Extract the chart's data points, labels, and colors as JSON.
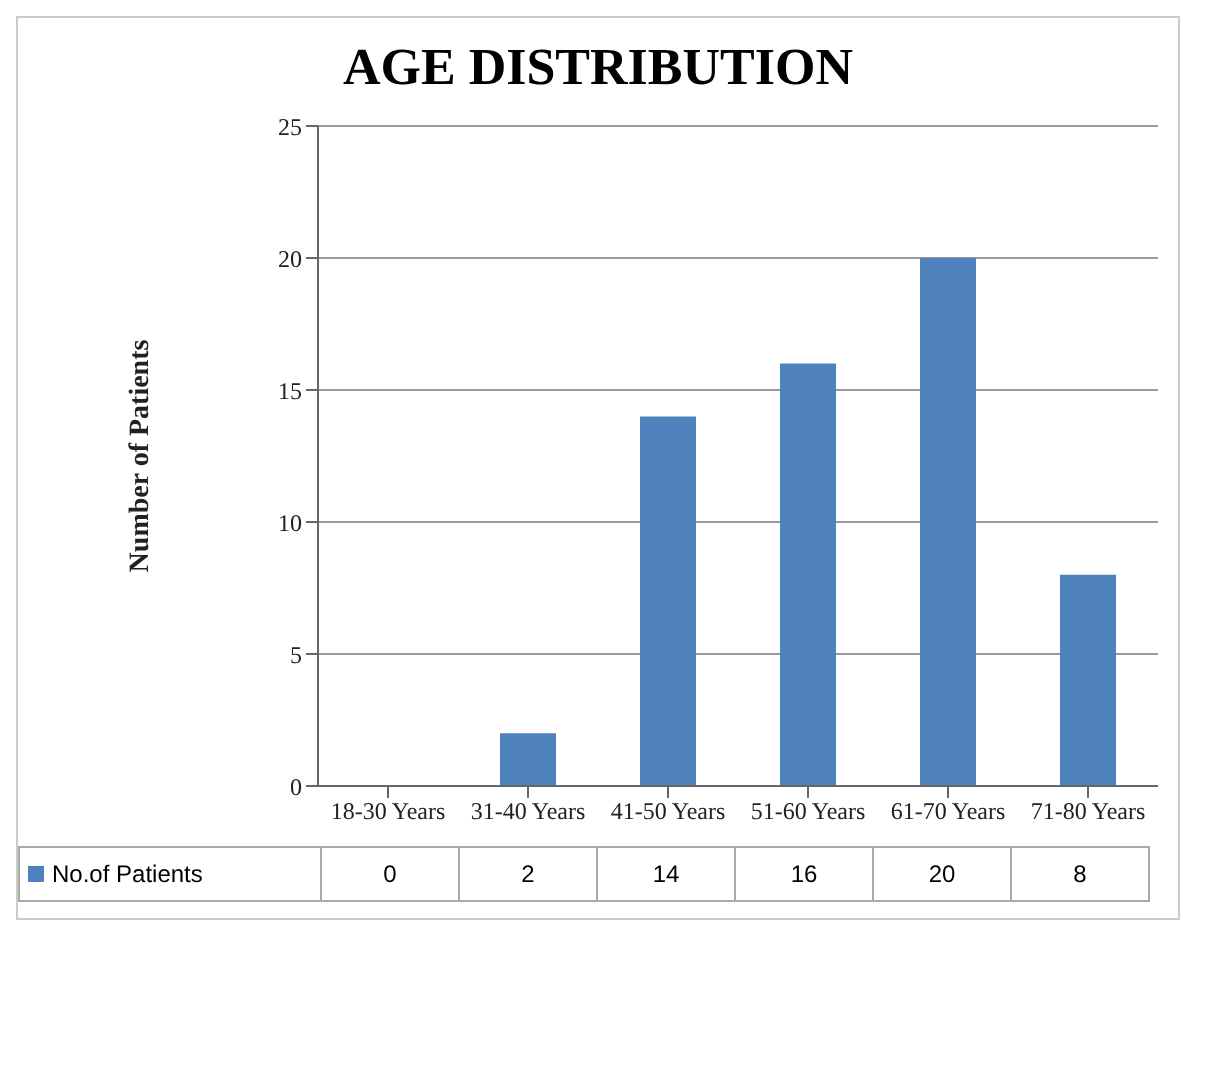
{
  "chart_data": {
    "type": "bar",
    "title": "AGE DISTRIBUTION",
    "ylabel": "Number of Patients",
    "categories": [
      "18-30 Years",
      "31-40 Years",
      "41-50 Years",
      "51-60 Years",
      "61-70 Years",
      "71-80 Years"
    ],
    "series": [
      {
        "name": "No.of Patients",
        "color": "#4f81bd",
        "values": [
          0,
          2,
          14,
          16,
          20,
          8
        ]
      }
    ],
    "ylim": [
      0,
      25
    ],
    "yticks": [
      0,
      5,
      10,
      15,
      20,
      25
    ],
    "grid": "y",
    "legend": "bottom",
    "data_labels": true
  }
}
